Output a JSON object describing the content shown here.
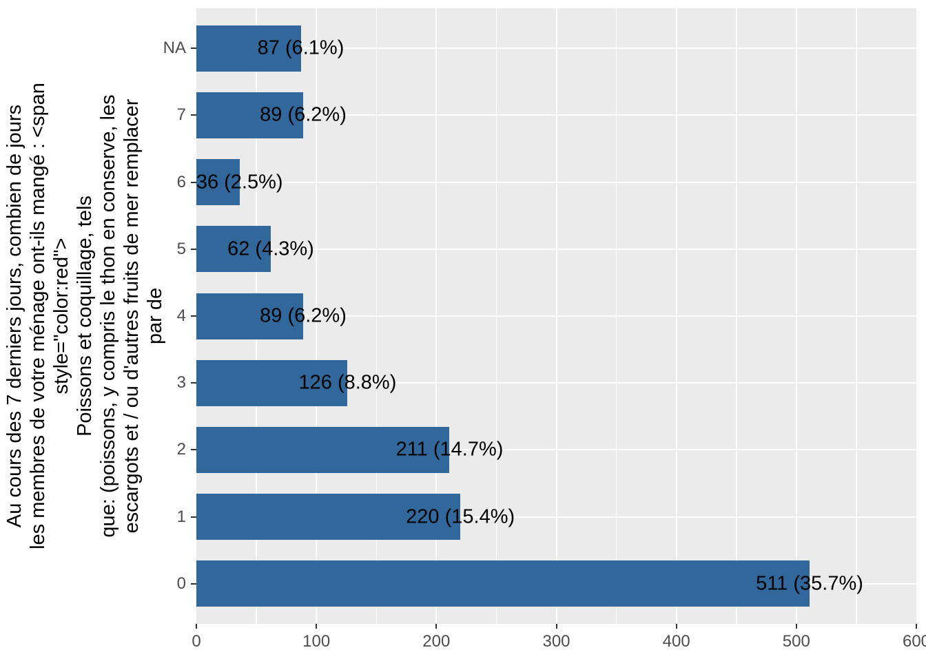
{
  "figure": {
    "background_color": "#FFFFFF",
    "panel_background_color": "#EBEBEB",
    "grid_color": "#FFFFFF",
    "bar_color": "#31679B",
    "bar_label_color": "#000000",
    "axis_text_color": "#4D4D4D",
    "tick_mark_color": "#333333"
  },
  "chart_data": {
    "type": "bar",
    "orientation": "horizontal",
    "title": "",
    "xlabel": "",
    "ylabel_lines": [
      "Au cours des 7 derniers jours, combien de jours",
      "les membres de votre ménage ont-ils mangé : <span",
      "style=\"color:red\">",
      "Poissons et coquillage, tels",
      "que: (poissons, y compris le thon en conserve, les",
      "escargots et / ou d'autres fruits de mer remplacer",
      "par de"
    ],
    "categories": [
      "NA",
      "7",
      "6",
      "5",
      "4",
      "3",
      "2",
      "1",
      "0"
    ],
    "values": [
      87,
      89,
      36,
      62,
      89,
      126,
      211,
      220,
      511
    ],
    "percentages": [
      6.1,
      6.2,
      2.5,
      4.3,
      6.2,
      8.8,
      14.7,
      15.4,
      35.7
    ],
    "bar_labels": [
      "87 (6.1%)",
      "89 (6.2%)",
      "36 (2.5%)",
      "62 (4.3%)",
      "89 (6.2%)",
      "126 (8.8%)",
      "211 (14.7%)",
      "220 (15.4%)",
      "511 (35.7%)"
    ],
    "xlim": [
      0,
      600
    ],
    "xticks": [
      0,
      100,
      200,
      300,
      400,
      500,
      600
    ],
    "xticks_minor": [
      50,
      150,
      250,
      350,
      450,
      550
    ],
    "grid": true,
    "legend": false
  }
}
